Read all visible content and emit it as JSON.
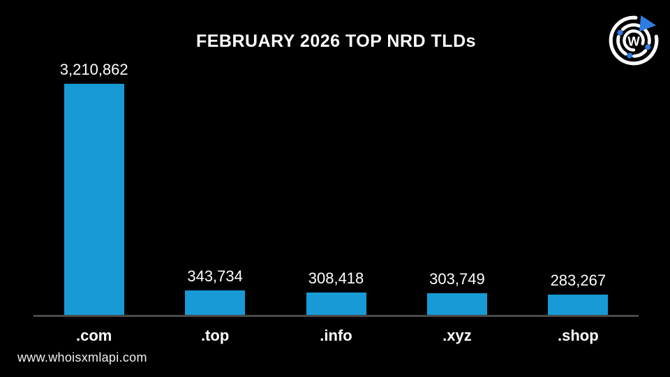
{
  "page": {
    "background": "#000000"
  },
  "header": {
    "title": "FEBRUARY 2026 TOP NRD TLDs"
  },
  "branding": {
    "website": "www.whoisxmlapi.com",
    "logo_letter": "W",
    "logo_blue": "#2e7de2",
    "logo_white": "#ffffff"
  },
  "chart_data": {
    "type": "bar",
    "title": "FEBRUARY 2026 TOP NRD TLDs",
    "categories": [
      ".com",
      ".top",
      ".info",
      ".xyz",
      ".shop"
    ],
    "values": [
      3210862,
      343734,
      308418,
      303749,
      283267
    ],
    "value_labels": [
      "3,210,862",
      "343,734",
      "308,418",
      "303,749",
      "283,267"
    ],
    "xlabel": "",
    "ylabel": "",
    "ylim": [
      0,
      3210862
    ],
    "grid": false,
    "legend": false,
    "bar_color": "#179ad5",
    "axis_line_color": "#4a4a4a",
    "label_color": "#ffffff"
  }
}
